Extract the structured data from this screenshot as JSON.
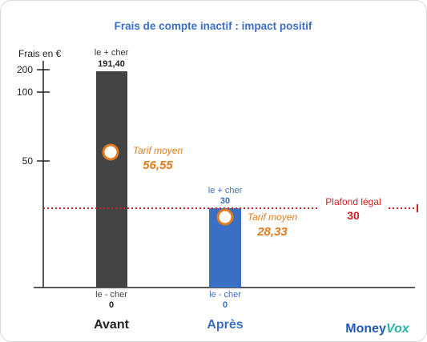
{
  "chart_data": {
    "type": "bar",
    "title": "Frais de compte inactif : impact positif",
    "ylabel": "Frais en €",
    "yticks": [
      "200",
      "100",
      "50"
    ],
    "categories": [
      "Avant",
      "Après"
    ],
    "values": [
      191.4,
      30
    ],
    "bars": [
      {
        "category": "Avant",
        "max_label": "le + cher",
        "max_value": "191,40",
        "min_label": "le - cher",
        "min_value": "0",
        "avg_label": "Tarif moyen",
        "avg_value": "56,55",
        "color": "#444444"
      },
      {
        "category": "Après",
        "max_label": "le + cher",
        "max_value": "30",
        "min_label": "le - cher",
        "min_value": "0",
        "avg_label": "Tarif moyen",
        "avg_value": "28,33",
        "color": "#3a6fc4"
      }
    ],
    "reference_line": {
      "label": "Plafond légal",
      "value": "30",
      "color": "#cc2222"
    },
    "colors": {
      "title": "#3a6fc4",
      "avg_marker": "#e07b20",
      "avg_text": "#e07b20",
      "cat_after": "#3a6fc4",
      "cat_before": "#222222"
    }
  },
  "brand": {
    "part1": "Money",
    "part2": "Vox",
    "color1": "#1f5bb5",
    "color2": "#2bb3a8"
  }
}
